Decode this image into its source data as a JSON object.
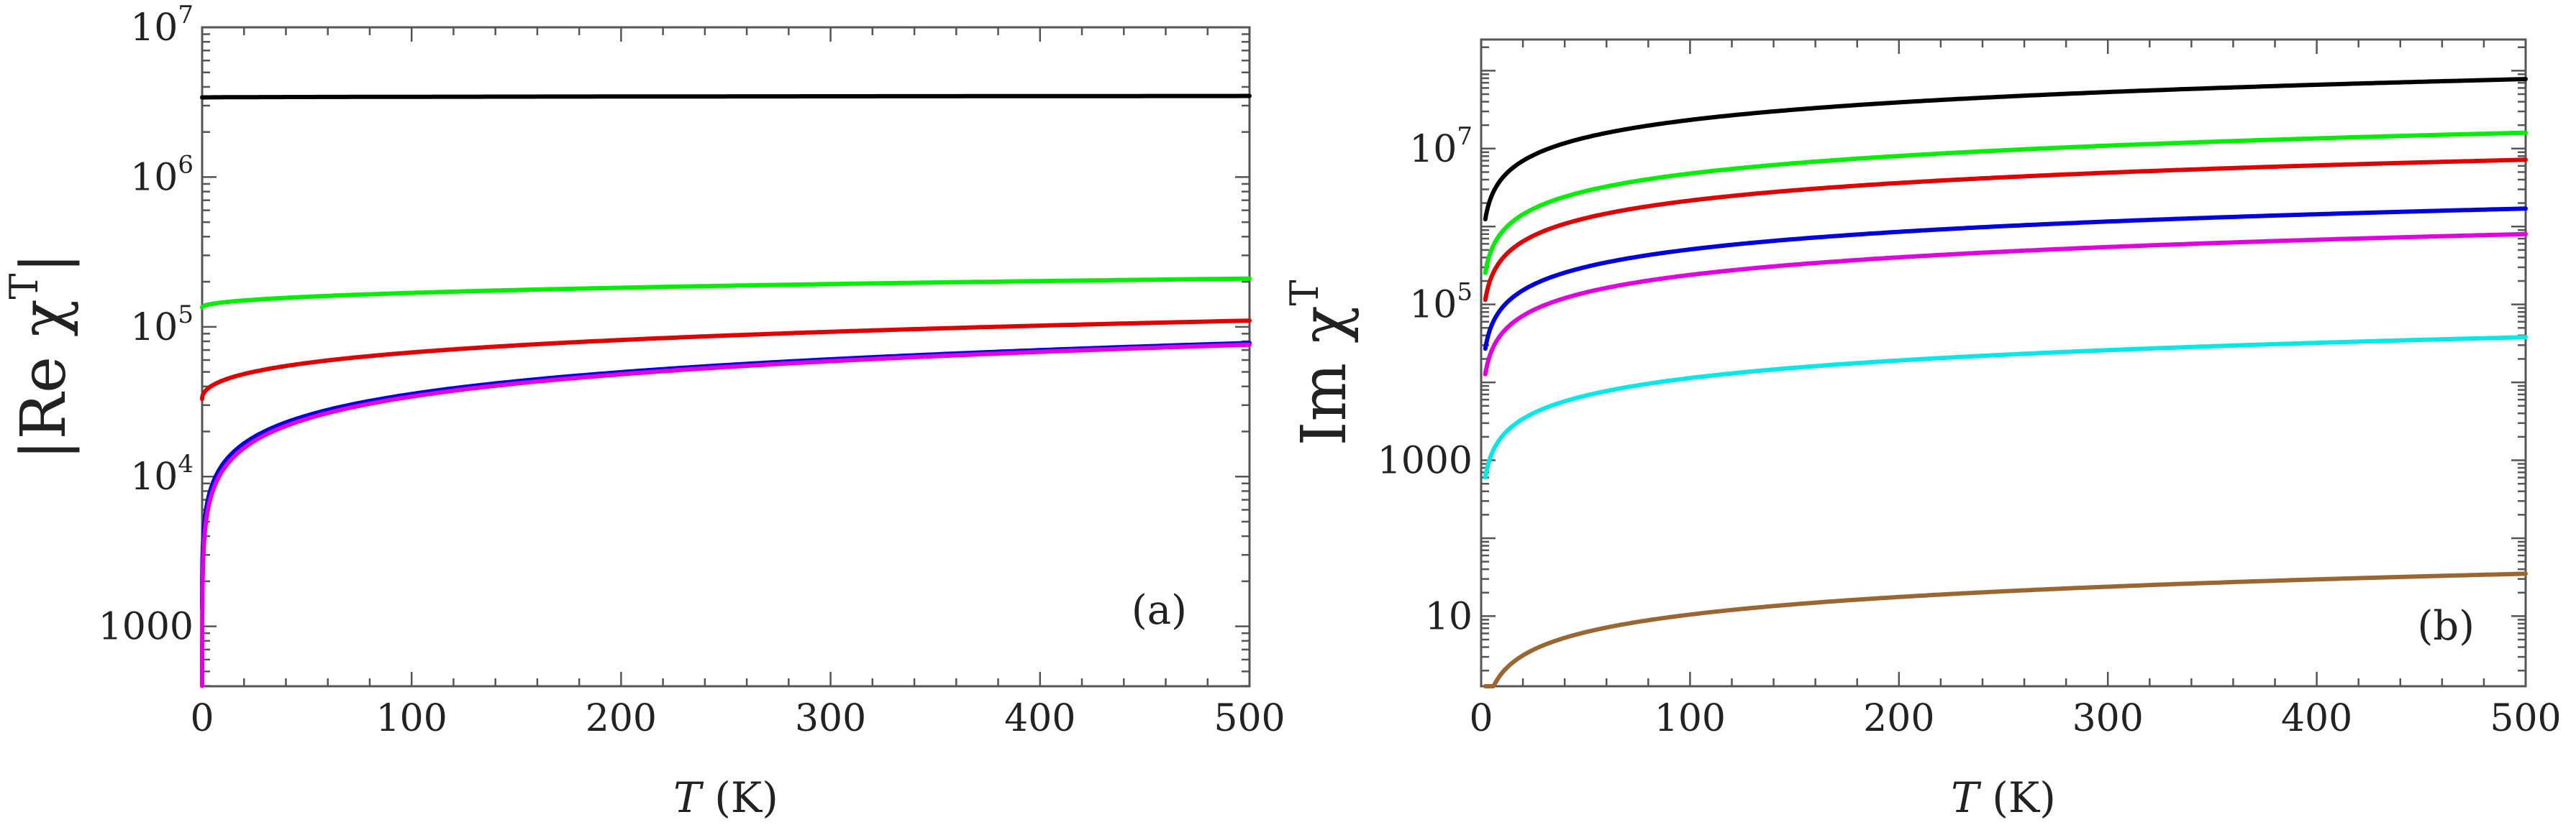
{
  "chart_data": [
    {
      "panel_label": "(a)",
      "type": "line",
      "scale_y": "log",
      "ylabel": {
        "main": "|Re χ",
        "sup": "T",
        "close": "|"
      },
      "xlabel": {
        "var": "T",
        "unit": " (K)"
      },
      "xlim": [
        0,
        500
      ],
      "ylim_exp": [
        2.6,
        7.0
      ],
      "x_ticks": [
        0,
        100,
        200,
        300,
        400,
        500
      ],
      "x_tick_labels": [
        "0",
        "100",
        "200",
        "300",
        "400",
        "500"
      ],
      "y_ticks": [
        {
          "exp": 7,
          "base": "10",
          "sup": "7"
        },
        {
          "exp": 6,
          "base": "10",
          "sup": "6"
        },
        {
          "exp": 5,
          "base": "10",
          "sup": "5"
        },
        {
          "exp": 4,
          "base": "10",
          "sup": "4"
        },
        {
          "exp": 3,
          "base": "1000",
          "sup": ""
        }
      ],
      "series": [
        {
          "name": "black",
          "color": "#000000",
          "model": "sqrt",
          "start_x": 0,
          "y0": 3400000,
          "y500": 3480000
        },
        {
          "name": "green",
          "color": "#00ee00",
          "model": "sqrt",
          "start_x": 0,
          "y0": 135000,
          "y500": 210000
        },
        {
          "name": "red",
          "color": "#e00000",
          "model": "sqrt",
          "start_x": 0,
          "y0": 33000,
          "y500": 110000
        },
        {
          "name": "blue",
          "color": "#0000e0",
          "model": "sqrt",
          "start_x": 0,
          "y0": 1300,
          "y500": 78000
        },
        {
          "name": "magenta",
          "color": "#e000e0",
          "model": "sqrt",
          "start_x": 0,
          "y0": 400,
          "y500": 76000
        }
      ]
    },
    {
      "panel_label": "(b)",
      "type": "line",
      "scale_y": "log",
      "ylabel": {
        "main": "Im χ",
        "sup": "T",
        "close": ""
      },
      "xlabel": {
        "var": "T",
        "unit": " (K)"
      },
      "xlim": [
        0,
        500
      ],
      "ylim_exp": [
        0.1,
        8.4
      ],
      "x_ticks": [
        0,
        100,
        200,
        300,
        400,
        500
      ],
      "x_tick_labels": [
        "0",
        "100",
        "200",
        "300",
        "400",
        "500"
      ],
      "y_ticks": [
        {
          "exp": 7,
          "base": "10",
          "sup": "7"
        },
        {
          "exp": 5,
          "base": "10",
          "sup": "5"
        },
        {
          "exp": 3,
          "base": "1000",
          "sup": ""
        },
        {
          "exp": 1,
          "base": "10",
          "sup": ""
        }
      ],
      "series": [
        {
          "name": "black",
          "color": "#000000",
          "model": "powerlaw",
          "start_x": 2,
          "y500": 78000000
        },
        {
          "name": "green",
          "color": "#00ee00",
          "model": "powerlaw",
          "start_x": 2,
          "y500": 16000000
        },
        {
          "name": "red",
          "color": "#e00000",
          "model": "powerlaw",
          "start_x": 2,
          "y500": 7200000
        },
        {
          "name": "blue",
          "color": "#0000e0",
          "model": "powerlaw",
          "start_x": 2,
          "y500": 1700000
        },
        {
          "name": "magenta",
          "color": "#e000e0",
          "model": "powerlaw",
          "start_x": 2,
          "y500": 800000
        },
        {
          "name": "cyan",
          "color": "#00e8e8",
          "model": "powerlaw",
          "start_x": 2,
          "y500": 38000
        },
        {
          "name": "brown",
          "color": "#9a6632",
          "model": "powerlaw",
          "start_x": 2,
          "y500": 35
        }
      ]
    }
  ]
}
